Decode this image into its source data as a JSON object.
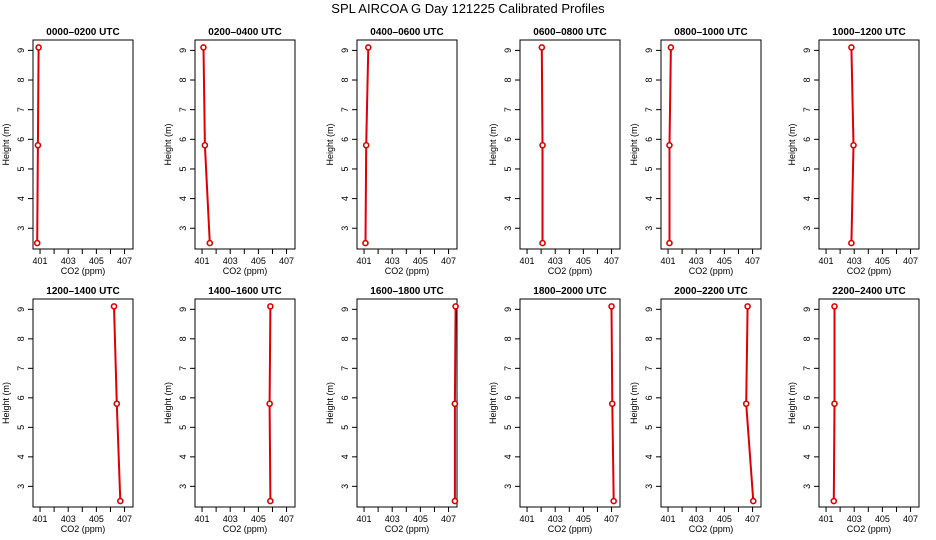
{
  "title": "SPL AIRCOA G  Day 121225  Calibrated Profiles",
  "chart_data": {
    "type": "line",
    "title": "SPL AIRCOA G  Day 121225  Calibrated Profiles",
    "xlabel": "CO2 (ppm)",
    "ylabel": "Height (m)",
    "xlim": [
      400.5,
      407.6
    ],
    "ylim": [
      2.3,
      9.35
    ],
    "x_ticks": [
      401,
      402,
      403,
      404,
      405,
      406,
      407
    ],
    "x_tick_labels": [
      "401",
      "",
      "403",
      "",
      "405",
      "",
      "407"
    ],
    "y_ticks": [
      3,
      4,
      5,
      6,
      7,
      8,
      9
    ],
    "y_tick_labels": [
      "3",
      "4",
      "5",
      "6",
      "7",
      "8",
      "9"
    ],
    "heights": [
      2.5,
      5.8,
      9.1
    ],
    "line_color": "#dd0000",
    "panels": [
      {
        "title": "0000–0200 UTC",
        "co2": [
          400.8,
          400.85,
          400.9
        ]
      },
      {
        "title": "0200–0400 UTC",
        "co2": [
          401.55,
          401.2,
          401.1
        ]
      },
      {
        "title": "0400–0600 UTC",
        "co2": [
          401.1,
          401.15,
          401.3
        ]
      },
      {
        "title": "0600–0800 UTC",
        "co2": [
          402.1,
          402.1,
          402.05
        ]
      },
      {
        "title": "0800–1000 UTC",
        "co2": [
          401.1,
          401.1,
          401.2
        ]
      },
      {
        "title": "1000–1200 UTC",
        "co2": [
          402.8,
          402.95,
          402.8
        ]
      },
      {
        "title": "1200–1400 UTC",
        "co2": [
          406.7,
          406.45,
          406.25
        ]
      },
      {
        "title": "1400–1600 UTC",
        "co2": [
          405.85,
          405.8,
          405.85
        ]
      },
      {
        "title": "1600–1800 UTC",
        "co2": [
          407.45,
          407.45,
          407.5
        ]
      },
      {
        "title": "1800–2000 UTC",
        "co2": [
          407.15,
          407.05,
          407.0
        ]
      },
      {
        "title": "2000–2200 UTC",
        "co2": [
          407.05,
          406.55,
          406.65
        ]
      },
      {
        "title": "2200–2400 UTC",
        "co2": [
          401.55,
          401.6,
          401.6
        ]
      }
    ]
  }
}
